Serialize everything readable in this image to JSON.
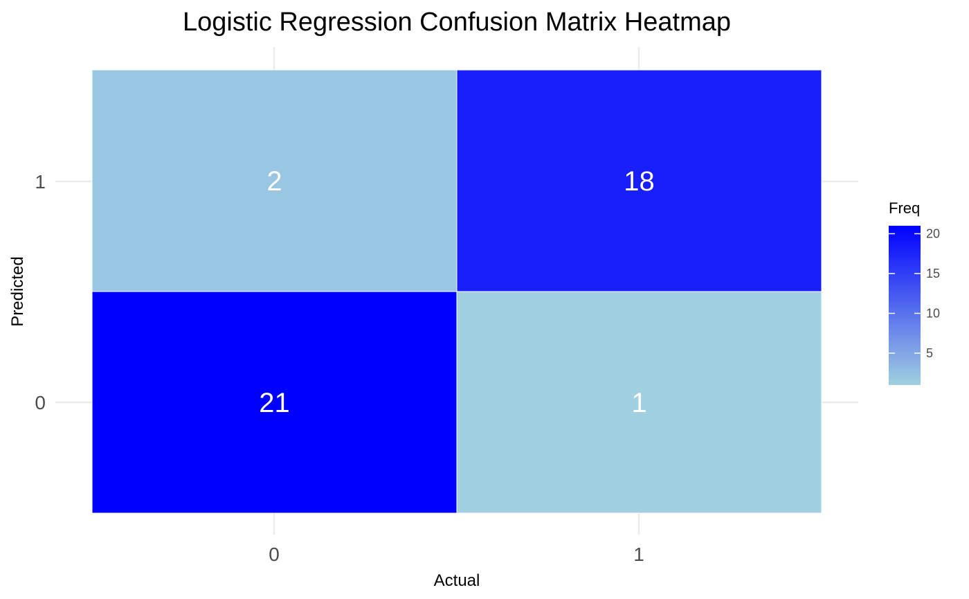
{
  "chart_data": {
    "type": "heatmap",
    "title": "Logistic Regression Confusion Matrix Heatmap",
    "xlabel": "Actual",
    "ylabel": "Predicted",
    "x_categories": [
      "0",
      "1"
    ],
    "y_categories": [
      "0",
      "1"
    ],
    "cells": [
      {
        "actual": "0",
        "predicted": "0",
        "value": 21
      },
      {
        "actual": "1",
        "predicted": "0",
        "value": 1
      },
      {
        "actual": "0",
        "predicted": "1",
        "value": 2
      },
      {
        "actual": "1",
        "predicted": "1",
        "value": 18
      }
    ],
    "legend": {
      "title": "Freq",
      "ticks": [
        5,
        10,
        15,
        20
      ],
      "range": [
        1,
        21
      ],
      "low_color": "#A1D0E0",
      "high_color": "#0000FF",
      "placement": "right"
    },
    "grid": true
  }
}
